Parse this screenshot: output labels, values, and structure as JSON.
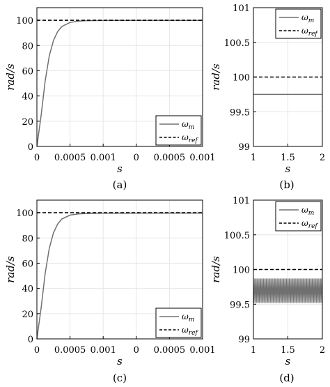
{
  "colors": {
    "measured": "#707070",
    "reference": "#000000",
    "grid": "#e6e6e6"
  },
  "chart_data": [
    {
      "panel": "a",
      "type": "line",
      "caption": "(a)",
      "xlabel": "s",
      "ylabel": "rad/s",
      "ylim": [
        0,
        110
      ],
      "y_ticks": [
        "0",
        "20",
        "40",
        "60",
        "80",
        "100"
      ],
      "x_ticks": [
        "0",
        "0.0005",
        "0.001",
        "0",
        "0.0005",
        "0.001"
      ],
      "grid": true,
      "legend_position": "bottom-right",
      "series": [
        {
          "name": "ω",
          "subscript": "m",
          "style": "solid",
          "x": [
            0,
            5e-05,
            0.0001,
            0.00015,
            0.0002,
            0.00025,
            0.0003,
            0.0004,
            0.0005,
            0.0006,
            0.0008,
            0.001,
            0.0015,
            0.002
          ],
          "values": [
            0,
            24,
            52,
            72,
            84,
            91,
            95,
            98.3,
            99.3,
            99.7,
            99.85,
            99.9,
            99.9,
            99.9
          ]
        },
        {
          "name": "ω",
          "subscript": "ref",
          "style": "dashed",
          "x": [
            0,
            0.002
          ],
          "values": [
            100,
            100
          ]
        }
      ]
    },
    {
      "panel": "b",
      "type": "line",
      "caption": "(b)",
      "xlabel": "s",
      "ylabel": "rad/s",
      "xlim": [
        1,
        2
      ],
      "ylim": [
        99,
        101
      ],
      "y_ticks": [
        "99",
        "99.5",
        "100",
        "100.5",
        "101"
      ],
      "x_ticks": [
        "1",
        "1.5",
        "2"
      ],
      "grid": true,
      "legend_position": "top-right",
      "series": [
        {
          "name": "ω",
          "subscript": "m",
          "style": "solid",
          "x": [
            1,
            2
          ],
          "values": [
            99.75,
            99.75
          ]
        },
        {
          "name": "ω",
          "subscript": "ref",
          "style": "dashed",
          "x": [
            1,
            2
          ],
          "values": [
            100,
            100
          ]
        }
      ]
    },
    {
      "panel": "c",
      "type": "line",
      "caption": "(c)",
      "xlabel": "s",
      "ylabel": "rad/s",
      "ylim": [
        0,
        110
      ],
      "y_ticks": [
        "0",
        "20",
        "40",
        "60",
        "80",
        "100"
      ],
      "x_ticks": [
        "0",
        "0.0005",
        "0.001",
        "0",
        "0.0005",
        "0.001"
      ],
      "grid": true,
      "legend_position": "bottom-right",
      "series": [
        {
          "name": "ω",
          "subscript": "m",
          "style": "solid",
          "x": [
            0,
            5e-05,
            0.0001,
            0.00015,
            0.0002,
            0.00025,
            0.0003,
            0.0004,
            0.0005,
            0.0006,
            0.0008,
            0.001,
            0.0015,
            0.002
          ],
          "values": [
            0,
            24,
            52,
            72,
            84,
            91,
            95,
            98.1,
            99.1,
            99.4,
            99.6,
            99.65,
            99.7,
            99.7
          ]
        },
        {
          "name": "ω",
          "subscript": "ref",
          "style": "dashed",
          "x": [
            0,
            0.002
          ],
          "values": [
            100,
            100
          ]
        }
      ]
    },
    {
      "panel": "d",
      "type": "line",
      "caption": "(d)",
      "xlabel": "s",
      "ylabel": "rad/s",
      "xlim": [
        1,
        2
      ],
      "ylim": [
        99,
        101
      ],
      "y_ticks": [
        "99",
        "99.5",
        "100",
        "100.5",
        "101"
      ],
      "x_ticks": [
        "1",
        "1.5",
        "2"
      ],
      "grid": true,
      "legend_position": "top-right",
      "series": [
        {
          "name": "ω",
          "subscript": "m",
          "style": "solid",
          "oscillating": true,
          "x": [
            1,
            2
          ],
          "values": [
            99.7,
            99.7
          ],
          "oscillation_min": 99.52,
          "oscillation_max": 99.87
        },
        {
          "name": "ω",
          "subscript": "ref",
          "style": "dashed",
          "x": [
            1,
            2
          ],
          "values": [
            100,
            100
          ]
        }
      ]
    }
  ]
}
